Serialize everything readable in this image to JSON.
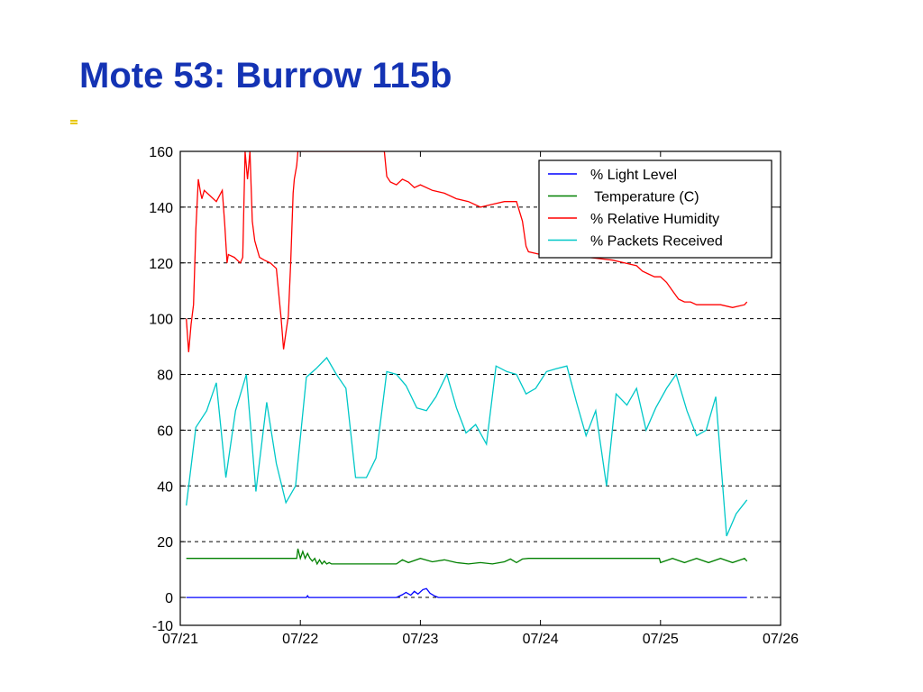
{
  "slide": {
    "title": "Mote 53: Burrow 115b"
  },
  "chart_data": {
    "type": "line",
    "title": "",
    "xlabel": "",
    "ylabel": "",
    "xlim": [
      0,
      5
    ],
    "ylim": [
      -10,
      160
    ],
    "grid": "horizontal-dashed",
    "legend_position": "top-right",
    "x_tick_labels": [
      "07/21",
      "07/22",
      "07/23",
      "07/24",
      "07/25",
      "07/26"
    ],
    "y_ticks": [
      -10,
      0,
      20,
      40,
      60,
      80,
      100,
      120,
      140,
      160
    ],
    "series": [
      {
        "name": "% Light Level",
        "color": "#0000ff",
        "x": [
          0.05,
          1.05,
          1.06,
          1.07,
          1.8,
          1.85,
          1.88,
          1.92,
          1.95,
          1.98,
          2.02,
          2.05,
          2.08,
          2.12,
          2.15,
          2.2,
          4.0,
          4.72
        ],
        "y": [
          0,
          0,
          0.6,
          0,
          0,
          1,
          1.8,
          0.8,
          2.2,
          1.2,
          2.8,
          3.2,
          1.5,
          0.5,
          0,
          0,
          0,
          0
        ]
      },
      {
        "name": " Temperature (C)",
        "color": "#008000",
        "x": [
          0.05,
          0.97,
          0.98,
          1.0,
          1.02,
          1.04,
          1.06,
          1.08,
          1.1,
          1.12,
          1.14,
          1.16,
          1.18,
          1.2,
          1.22,
          1.24,
          1.26,
          1.4,
          1.6,
          1.8,
          1.85,
          1.9,
          2.0,
          2.1,
          2.2,
          2.3,
          2.4,
          2.5,
          2.6,
          2.7,
          2.75,
          2.8,
          2.85,
          2.9,
          3.0,
          3.2,
          3.4,
          3.6,
          3.8,
          3.99,
          4.0,
          4.1,
          4.2,
          4.3,
          4.4,
          4.5,
          4.6,
          4.7,
          4.72
        ],
        "y": [
          14,
          14,
          17.5,
          14,
          16.5,
          14,
          15.8,
          14,
          13,
          14,
          12,
          13.5,
          12,
          13,
          12,
          12.5,
          12,
          12,
          12,
          12,
          13.5,
          12.5,
          14,
          12.8,
          13.5,
          12.5,
          12,
          12.5,
          12,
          12.8,
          13.8,
          12.5,
          13.8,
          14,
          14,
          14,
          14,
          14,
          14,
          14,
          12.5,
          14,
          12.5,
          14,
          12.5,
          14,
          12.5,
          14,
          13
        ]
      },
      {
        "name": "% Relative Humidity",
        "color": "#ff0000",
        "x": [
          0.05,
          0.07,
          0.09,
          0.11,
          0.13,
          0.15,
          0.17,
          0.18,
          0.2,
          0.25,
          0.3,
          0.35,
          0.37,
          0.39,
          0.4,
          0.45,
          0.5,
          0.52,
          0.54,
          0.56,
          0.58,
          0.6,
          0.62,
          0.64,
          0.66,
          0.7,
          0.75,
          0.8,
          0.84,
          0.86,
          0.88,
          0.9,
          0.92,
          0.94,
          0.95,
          0.97,
          0.98,
          1.0,
          1.7,
          1.72,
          1.75,
          1.8,
          1.85,
          1.9,
          1.95,
          2.0,
          2.1,
          2.2,
          2.3,
          2.4,
          2.5,
          2.6,
          2.7,
          2.8,
          2.85,
          2.88,
          2.9,
          3.0,
          3.2,
          3.4,
          3.6,
          3.7,
          3.8,
          3.85,
          3.9,
          3.95,
          4.0,
          4.05,
          4.1,
          4.15,
          4.2,
          4.25,
          4.3,
          4.4,
          4.5,
          4.6,
          4.7,
          4.72
        ],
        "y": [
          100,
          88,
          98,
          105,
          132,
          150,
          145,
          143,
          146,
          144,
          142,
          146,
          134,
          120,
          123,
          122,
          120,
          122,
          160,
          150,
          160,
          135,
          128,
          125,
          122,
          121,
          120,
          118,
          100,
          89,
          95,
          101,
          120,
          145,
          150,
          155,
          160,
          160,
          160,
          151,
          149,
          148,
          150,
          149,
          147,
          148,
          146,
          145,
          143,
          142,
          140,
          141,
          142,
          142,
          135,
          126,
          124,
          123,
          122,
          122,
          121,
          120,
          119,
          117,
          116,
          115,
          115,
          113,
          110,
          107,
          106,
          106,
          105,
          105,
          105,
          104,
          105,
          106
        ]
      },
      {
        "name": "% Packets Received",
        "color": "#00c8c8",
        "x": [
          0.05,
          0.13,
          0.22,
          0.3,
          0.38,
          0.46,
          0.55,
          0.63,
          0.72,
          0.8,
          0.88,
          0.96,
          1.05,
          1.13,
          1.22,
          1.3,
          1.38,
          1.46,
          1.55,
          1.63,
          1.72,
          1.8,
          1.88,
          1.97,
          2.05,
          2.13,
          2.22,
          2.3,
          2.38,
          2.46,
          2.55,
          2.63,
          2.72,
          2.8,
          2.88,
          2.96,
          3.05,
          3.13,
          3.22,
          3.3,
          3.38,
          3.46,
          3.55,
          3.63,
          3.72,
          3.8,
          3.88,
          3.96,
          4.05,
          4.13,
          4.22,
          4.3,
          4.38,
          4.46,
          4.55,
          4.63,
          4.72
        ],
        "y": [
          33,
          61,
          67,
          77,
          43,
          67,
          80,
          38,
          70,
          48,
          34,
          40,
          79,
          82,
          86,
          80,
          75,
          43,
          43,
          50,
          81,
          80,
          76,
          68,
          67,
          72,
          80,
          68,
          59,
          62,
          55,
          83,
          81,
          80,
          73,
          75,
          81,
          82,
          83,
          70,
          58,
          67,
          40,
          73,
          69,
          75,
          60,
          68,
          75,
          80,
          67,
          58,
          60,
          72,
          22,
          30,
          35
        ]
      }
    ]
  }
}
